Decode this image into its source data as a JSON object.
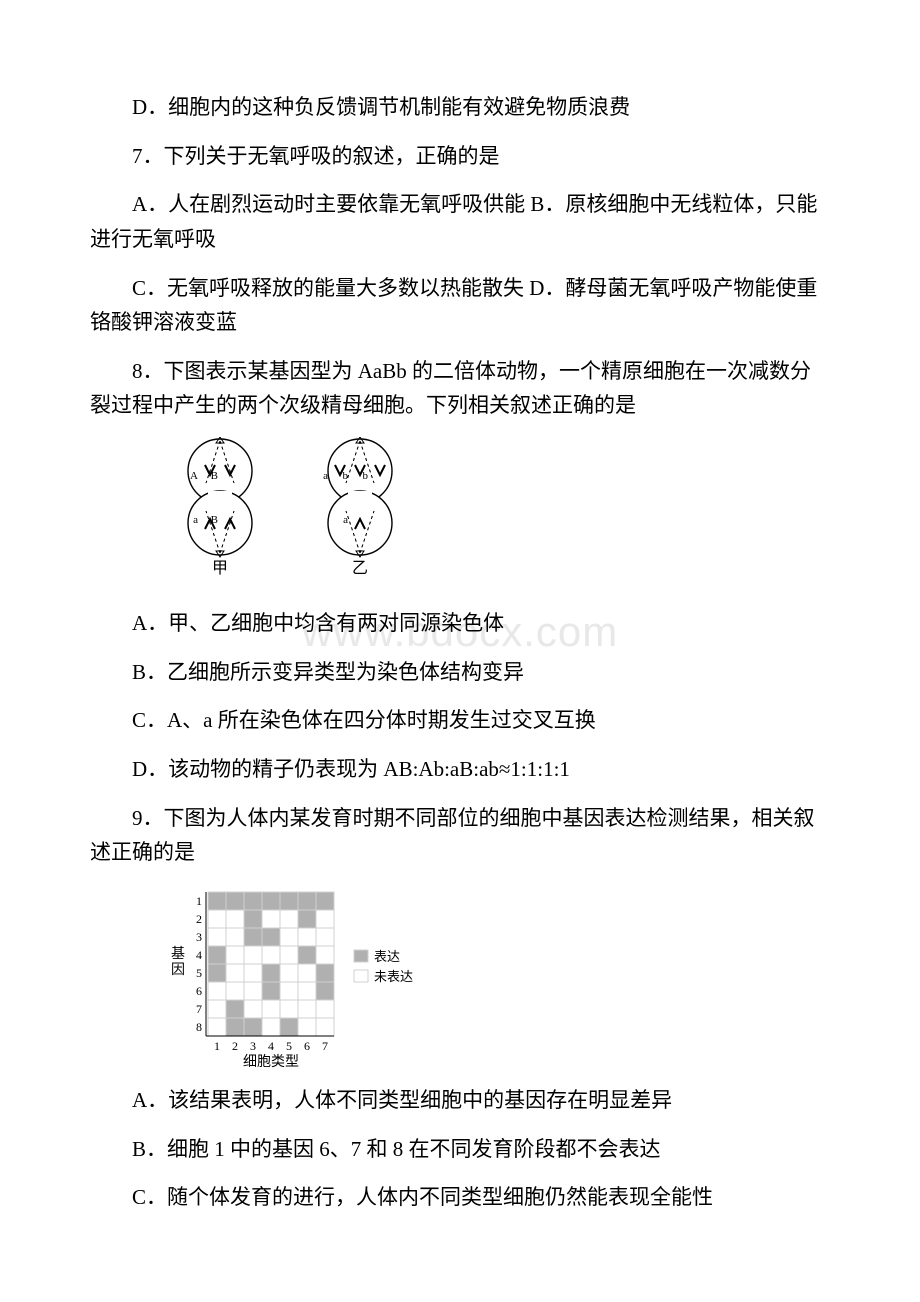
{
  "q6": {
    "optD": "D．细胞内的这种负反馈调节机制能有效避免物质浪费"
  },
  "q7": {
    "stem": "7．下列关于无氧呼吸的叙述，正确的是",
    "optAB": "A．人在剧烈运动时主要依靠无氧呼吸供能 B．原核细胞中无线粒体，只能进行无氧呼吸",
    "optCD": "C．无氧呼吸释放的能量大多数以热能散失 D．酵母菌无氧呼吸产物能使重铬酸钾溶液变蓝"
  },
  "q8": {
    "stem": "8．下图表示某基因型为 AaBb 的二倍体动物，一个精原细胞在一次减数分裂过程中产生的两个次级精母细胞。下列相关叙述正确的是",
    "optA": "A．甲、乙细胞中均含有两对同源染色体",
    "optB": "B．乙细胞所示变异类型为染色体结构变异",
    "optC": "C．A、a 所在染色体在四分体时期发生过交叉互换",
    "optD": "D．该动物的精子仍表现为 AB:Ab:aB:ab≈1:1:1:1",
    "figure": {
      "cell1": {
        "label": "甲",
        "top": [
          "A",
          "B"
        ],
        "bottom": [
          "a",
          "B"
        ]
      },
      "cell2": {
        "label": "乙",
        "top": [
          "a",
          "b",
          "b"
        ],
        "bottom": [
          "a"
        ]
      },
      "stroke": "#000000",
      "fill": "#ffffff"
    }
  },
  "q9": {
    "stem": "9．下图为人体内某发育时期不同部位的细胞中基因表达检测结果，相关叙述正确的是",
    "optA": "A．该结果表明，人体不同类型细胞中的基因存在明显差异",
    "optB": "B．细胞 1 中的基因 6、7 和 8 在不同发育阶段都不会表达",
    "optC": "C．随个体发育的进行，人体内不同类型细胞仍然能表现全能性",
    "chart": {
      "rows": 8,
      "cols": 7,
      "ylabel": "基因",
      "xlabel": "细胞类型",
      "legend": {
        "on": "表达",
        "off": "未表达"
      },
      "on_color": "#b0b0b0",
      "off_color": "#ffffff",
      "grid_color": "#d0d0d0",
      "text_color": "#000000",
      "font_size": 12,
      "data": [
        [
          1,
          1,
          1,
          1,
          1,
          1,
          1
        ],
        [
          0,
          0,
          1,
          0,
          0,
          1,
          0
        ],
        [
          0,
          0,
          1,
          1,
          0,
          0,
          0
        ],
        [
          1,
          0,
          0,
          0,
          0,
          1,
          0
        ],
        [
          1,
          0,
          0,
          1,
          0,
          0,
          1
        ],
        [
          0,
          0,
          0,
          1,
          0,
          0,
          1
        ],
        [
          0,
          1,
          0,
          0,
          0,
          0,
          0
        ],
        [
          0,
          1,
          1,
          0,
          1,
          0,
          0
        ]
      ]
    }
  },
  "watermark": "www.bdocx.com"
}
